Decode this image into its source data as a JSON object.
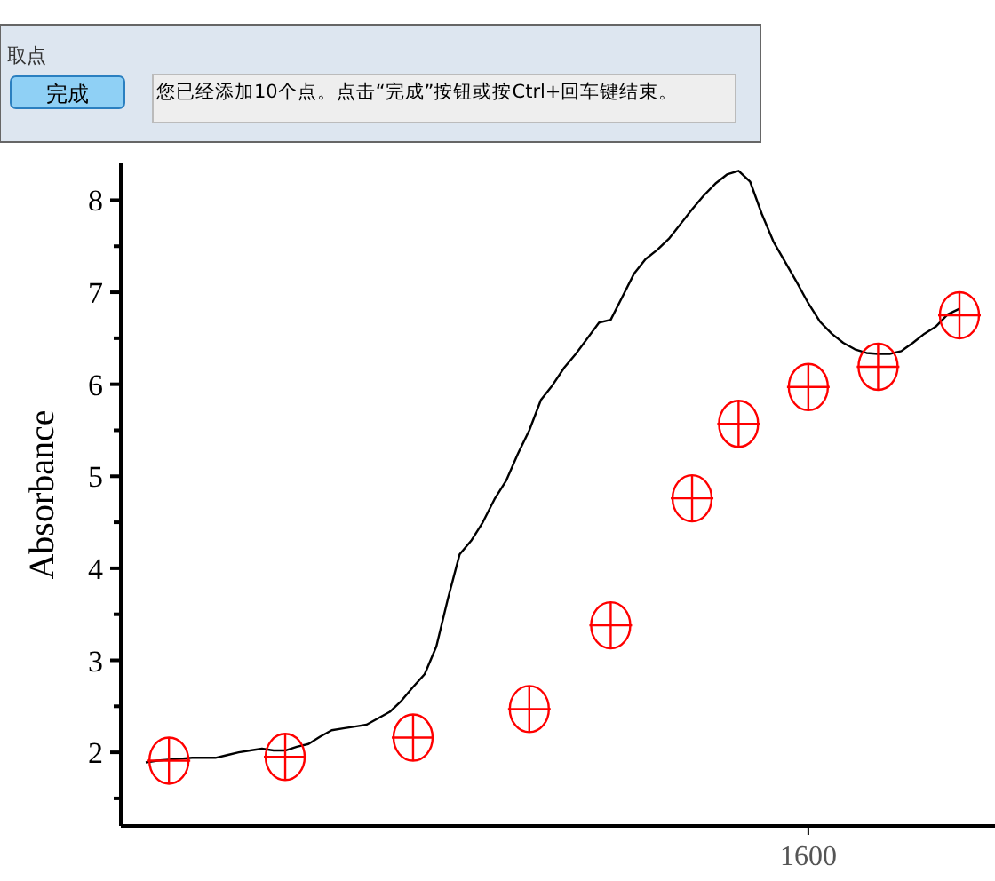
{
  "chart_data": {
    "type": "line",
    "ylabel": "Absorbance",
    "annotations": [
      "取点",
      "完成",
      "您已经添加10个点。点击“完成”按钮或按Ctrl+回车键结束。"
    ],
    "categories": [
      null,
      null,
      null,
      null,
      null,
      null,
      null,
      null,
      null,
      null,
      null,
      null,
      null,
      null,
      null,
      null,
      null,
      null,
      null,
      null,
      null,
      null,
      null,
      null,
      null,
      null,
      null,
      null,
      null,
      null,
      null,
      null,
      null,
      null,
      null,
      null,
      null,
      null,
      null,
      null,
      null,
      null,
      null,
      null,
      null,
      null,
      null,
      null,
      null,
      null,
      null,
      null,
      null,
      null,
      null,
      null,
      null,
      "1600",
      null,
      null,
      null,
      null,
      null,
      null,
      null,
      null,
      null,
      null,
      null,
      null,
      null
    ],
    "ylim": [
      1.2,
      8.4
    ],
    "yticks": [
      {
        "value": 1.5,
        "label": null
      },
      2,
      {
        "value": 2.5,
        "label": null
      },
      3,
      {
        "value": 3.5,
        "label": null
      },
      4,
      {
        "value": 4.5,
        "label": null
      },
      5,
      {
        "value": 5.5,
        "label": null
      },
      6,
      {
        "value": 6.5,
        "label": null
      },
      7,
      {
        "value": 7.5,
        "label": null
      },
      8
    ],
    "series": [
      {
        "color": "#000000",
        "marker": "none",
        "values": [
          1.89,
          1.91,
          1.92,
          1.93,
          1.94,
          1.94,
          1.94,
          1.97,
          2.0,
          2.02,
          2.04,
          2.02,
          2.02,
          2.06,
          2.09,
          2.17,
          2.24,
          2.26,
          2.28,
          2.3,
          2.37,
          2.44,
          2.56,
          2.71,
          2.85,
          3.15,
          3.67,
          4.15,
          4.3,
          4.5,
          4.75,
          4.95,
          5.24,
          5.5,
          5.83,
          5.99,
          6.18,
          6.33,
          6.5,
          6.67,
          6.7,
          6.95,
          7.2,
          7.36,
          7.46,
          7.58,
          7.74,
          7.9,
          8.05,
          8.18,
          8.28,
          8.32,
          8.2,
          7.85,
          7.55,
          7.33,
          7.11,
          6.88,
          6.68,
          6.55,
          6.45,
          6.38,
          6.34,
          6.33,
          6.33,
          6.36,
          6.45,
          6.55,
          6.63,
          6.76,
          6.82
        ]
      },
      {
        "type": "scatter",
        "color": "#ff0000",
        "marker": "circle",
        "values": [
          null,
          null,
          1.91,
          null,
          null,
          null,
          null,
          null,
          null,
          null,
          null,
          null,
          1.95,
          null,
          null,
          null,
          null,
          null,
          null,
          null,
          null,
          null,
          null,
          2.16,
          null,
          null,
          null,
          null,
          null,
          null,
          null,
          null,
          null,
          2.47,
          null,
          null,
          null,
          null,
          null,
          null,
          3.38,
          null,
          null,
          null,
          null,
          null,
          null,
          4.76,
          null,
          null,
          null,
          5.57,
          null,
          null,
          null,
          null,
          null,
          5.97,
          null,
          null,
          null,
          null,
          null,
          6.19,
          null,
          null,
          null,
          null,
          null,
          null,
          6.75
        ]
      }
    ]
  }
}
